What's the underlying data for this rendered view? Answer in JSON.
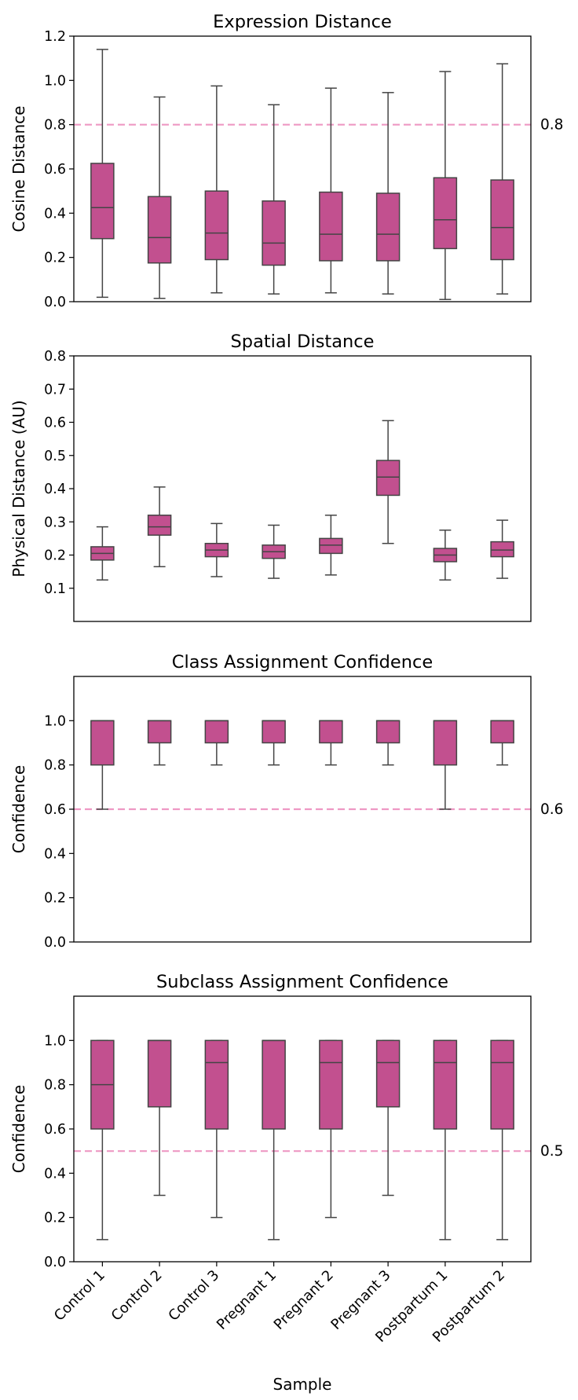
{
  "colors": {
    "box_fill": "#c2508f",
    "box_edge": "#444444",
    "reference_line": "#ee99c4",
    "axes": "#000000"
  },
  "figure": {
    "xlabel": "Sample",
    "categories": [
      "Control 1",
      "Control 2",
      "Control 3",
      "Pregnant 1",
      "Pregnant 2",
      "Pregnant 3",
      "Postpartum 1",
      "Postpartum 2"
    ]
  },
  "chart_data": [
    {
      "type": "box",
      "title": "Expression Distance",
      "ylabel": "Cosine Distance",
      "ylim": [
        0,
        1.2
      ],
      "yticks": [
        "0.0",
        "0.2",
        "0.4",
        "0.6",
        "0.8",
        "1.0",
        "1.2"
      ],
      "reference_line": {
        "value": 0.8,
        "label": "0.8",
        "style": "dashed"
      },
      "boxes": [
        {
          "category": "Control 1",
          "whislo": 0.02,
          "q1": 0.285,
          "median": 0.425,
          "q3": 0.625,
          "whishi": 1.14
        },
        {
          "category": "Control 2",
          "whislo": 0.015,
          "q1": 0.175,
          "median": 0.29,
          "q3": 0.475,
          "whishi": 0.925
        },
        {
          "category": "Control 3",
          "whislo": 0.04,
          "q1": 0.19,
          "median": 0.31,
          "q3": 0.5,
          "whishi": 0.975
        },
        {
          "category": "Pregnant 1",
          "whislo": 0.035,
          "q1": 0.165,
          "median": 0.265,
          "q3": 0.455,
          "whishi": 0.89
        },
        {
          "category": "Pregnant 2",
          "whislo": 0.04,
          "q1": 0.185,
          "median": 0.305,
          "q3": 0.495,
          "whishi": 0.965
        },
        {
          "category": "Pregnant 3",
          "whislo": 0.035,
          "q1": 0.185,
          "median": 0.305,
          "q3": 0.49,
          "whishi": 0.945
        },
        {
          "category": "Postpartum 1",
          "whislo": 0.01,
          "q1": 0.24,
          "median": 0.37,
          "q3": 0.56,
          "whishi": 1.04
        },
        {
          "category": "Postpartum 2",
          "whislo": 0.035,
          "q1": 0.19,
          "median": 0.335,
          "q3": 0.55,
          "whishi": 1.075
        }
      ]
    },
    {
      "type": "box",
      "title": "Spatial Distance",
      "ylabel": "Physical Distance (AU)",
      "ylim": [
        0.0,
        0.8
      ],
      "yticks": [
        "0.1",
        "0.2",
        "0.3",
        "0.4",
        "0.5",
        "0.6",
        "0.7",
        "0.8"
      ],
      "reference_line": null,
      "boxes": [
        {
          "category": "Control 1",
          "whislo": 0.125,
          "q1": 0.185,
          "median": 0.205,
          "q3": 0.225,
          "whishi": 0.285
        },
        {
          "category": "Control 2",
          "whislo": 0.165,
          "q1": 0.26,
          "median": 0.285,
          "q3": 0.32,
          "whishi": 0.405
        },
        {
          "category": "Control 3",
          "whislo": 0.135,
          "q1": 0.195,
          "median": 0.215,
          "q3": 0.235,
          "whishi": 0.295
        },
        {
          "category": "Pregnant 1",
          "whislo": 0.13,
          "q1": 0.19,
          "median": 0.21,
          "q3": 0.23,
          "whishi": 0.29
        },
        {
          "category": "Pregnant 2",
          "whislo": 0.14,
          "q1": 0.205,
          "median": 0.23,
          "q3": 0.25,
          "whishi": 0.32
        },
        {
          "category": "Pregnant 3",
          "whislo": 0.235,
          "q1": 0.38,
          "median": 0.435,
          "q3": 0.485,
          "whishi": 0.605
        },
        {
          "category": "Postpartum 1",
          "whislo": 0.125,
          "q1": 0.18,
          "median": 0.2,
          "q3": 0.22,
          "whishi": 0.275
        },
        {
          "category": "Postpartum 2",
          "whislo": 0.13,
          "q1": 0.195,
          "median": 0.215,
          "q3": 0.24,
          "whishi": 0.305
        }
      ]
    },
    {
      "type": "box",
      "title": "Class Assignment Confidence",
      "ylabel": "Confidence",
      "ylim": [
        0.0,
        1.2
      ],
      "yticks": [
        "0.0",
        "0.2",
        "0.4",
        "0.6",
        "0.8",
        "1.0"
      ],
      "reference_line": {
        "value": 0.6,
        "label": "0.6",
        "style": "dashed"
      },
      "boxes": [
        {
          "category": "Control 1",
          "whislo": 0.6,
          "q1": 0.8,
          "median": 1.0,
          "q3": 1.0,
          "whishi": 1.0
        },
        {
          "category": "Control 2",
          "whislo": 0.8,
          "q1": 0.9,
          "median": 1.0,
          "q3": 1.0,
          "whishi": 1.0
        },
        {
          "category": "Control 3",
          "whislo": 0.8,
          "q1": 0.9,
          "median": 1.0,
          "q3": 1.0,
          "whishi": 1.0
        },
        {
          "category": "Pregnant 1",
          "whislo": 0.8,
          "q1": 0.9,
          "median": 1.0,
          "q3": 1.0,
          "whishi": 1.0
        },
        {
          "category": "Pregnant 2",
          "whislo": 0.8,
          "q1": 0.9,
          "median": 1.0,
          "q3": 1.0,
          "whishi": 1.0
        },
        {
          "category": "Pregnant 3",
          "whislo": 0.8,
          "q1": 0.9,
          "median": 1.0,
          "q3": 1.0,
          "whishi": 1.0
        },
        {
          "category": "Postpartum 1",
          "whislo": 0.6,
          "q1": 0.8,
          "median": 1.0,
          "q3": 1.0,
          "whishi": 1.0
        },
        {
          "category": "Postpartum 2",
          "whislo": 0.8,
          "q1": 0.9,
          "median": 1.0,
          "q3": 1.0,
          "whishi": 1.0
        }
      ]
    },
    {
      "type": "box",
      "title": "Subclass Assignment Confidence",
      "ylabel": "Confidence",
      "ylim": [
        0.0,
        1.2
      ],
      "yticks": [
        "0.0",
        "0.2",
        "0.4",
        "0.6",
        "0.8",
        "1.0"
      ],
      "reference_line": {
        "value": 0.5,
        "label": "0.5",
        "style": "dashed"
      },
      "boxes": [
        {
          "category": "Control 1",
          "whislo": 0.1,
          "q1": 0.6,
          "median": 0.8,
          "q3": 1.0,
          "whishi": 1.0
        },
        {
          "category": "Control 2",
          "whislo": 0.3,
          "q1": 0.7,
          "median": 1.0,
          "q3": 1.0,
          "whishi": 1.0
        },
        {
          "category": "Control 3",
          "whislo": 0.2,
          "q1": 0.6,
          "median": 0.9,
          "q3": 1.0,
          "whishi": 1.0
        },
        {
          "category": "Pregnant 1",
          "whislo": 0.1,
          "q1": 0.6,
          "median": 1.0,
          "q3": 1.0,
          "whishi": 1.0
        },
        {
          "category": "Pregnant 2",
          "whislo": 0.2,
          "q1": 0.6,
          "median": 0.9,
          "q3": 1.0,
          "whishi": 1.0
        },
        {
          "category": "Pregnant 3",
          "whislo": 0.3,
          "q1": 0.7,
          "median": 0.9,
          "q3": 1.0,
          "whishi": 1.0
        },
        {
          "category": "Postpartum 1",
          "whislo": 0.1,
          "q1": 0.6,
          "median": 0.9,
          "q3": 1.0,
          "whishi": 1.0
        },
        {
          "category": "Postpartum 2",
          "whislo": 0.1,
          "q1": 0.6,
          "median": 0.9,
          "q3": 1.0,
          "whishi": 1.0
        }
      ]
    }
  ]
}
